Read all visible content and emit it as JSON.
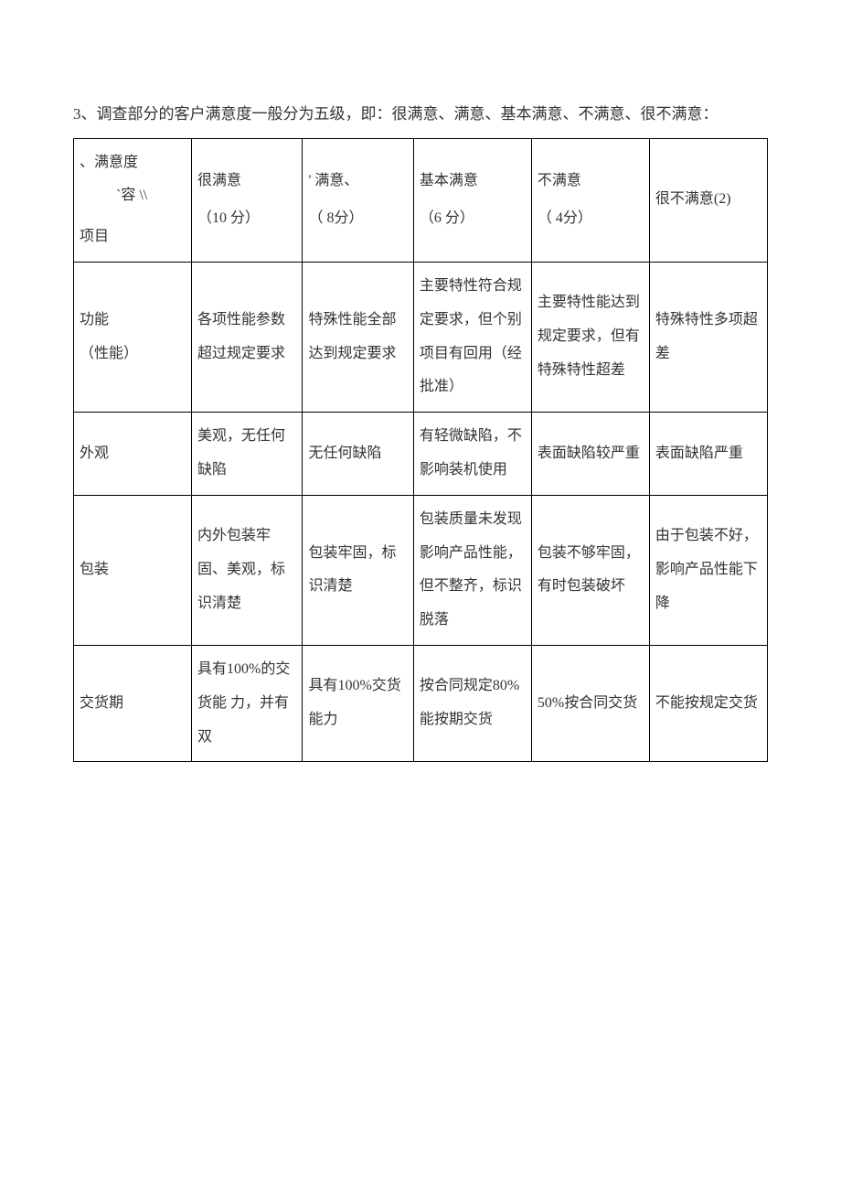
{
  "page": {
    "intro": "3、调查部分的客户满意度一般分为五级，即：很满意、满意、基本满意、不满意、很不满意：",
    "background_color": "#ffffff",
    "text_color": "#333333",
    "border_color": "#000000",
    "font_size_body": 17,
    "font_size_cell": 16
  },
  "table": {
    "header": {
      "diag": {
        "line1": "、满意度",
        "line2": "`容 \\\\",
        "line3": "项目"
      },
      "col1": {
        "label": "很满意",
        "score": "（10 分）"
      },
      "col2": {
        "label": "' 满意、",
        "score": "（ 8分）"
      },
      "col3": {
        "label": "基本满意",
        "score": "（6 分）"
      },
      "col4": {
        "label": "不满意",
        "score": "（ 4分）"
      },
      "col5": {
        "label": "很不满意(2)",
        "score": ""
      }
    },
    "rows": [
      {
        "item": "功能\n（性能）",
        "c1": "各项性能参数超过规定要求",
        "c2": "特殊性能全部达到规定要求",
        "c3": "主要特性符合规定要求，但个别项目有回用（经批准）",
        "c4": "主要特性能达到规定要求，但有特殊特性超差",
        "c5": "特殊特性多项超差"
      },
      {
        "item": "外观",
        "c1": "美观，无任何缺陷",
        "c2": "无任何缺陷",
        "c3": "有轻微缺陷，不影响装机使用",
        "c4": "表面缺陷较严重",
        "c5": "表面缺陷严重"
      },
      {
        "item": "包装",
        "c1": "内外包装牢固、美观，标识清楚",
        "c2": "包装牢固，标识清楚",
        "c3": "包装质量未发现影响产品性能，但不整齐，标识脱落",
        "c4": "包装不够牢固，有时包装破坏",
        "c5": "由于包装不好，影响产品性能下降"
      },
      {
        "item": "交货期",
        "c1": "具有100%的交货能  力，并有双",
        "c2": "具有100%交货能力",
        "c3": "按合同规定80%能按期交货",
        "c4": "50%按合同交货",
        "c5": "不能按规定交货"
      }
    ]
  }
}
